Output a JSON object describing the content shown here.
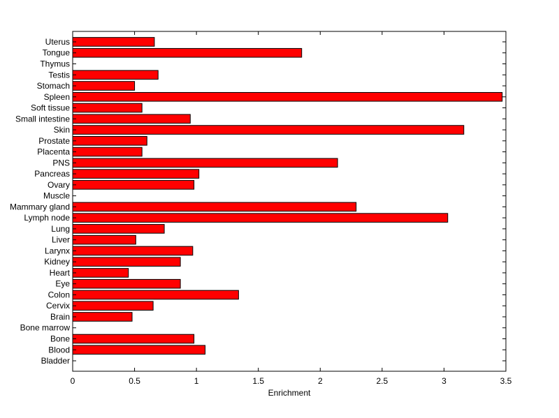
{
  "chart_data": {
    "type": "bar",
    "orientation": "horizontal",
    "title": "",
    "xlabel": "Enrichment",
    "ylabel": "",
    "xlim": [
      0,
      3.5
    ],
    "x_ticks": [
      0,
      0.5,
      1,
      1.5,
      2,
      2.5,
      3,
      3.5
    ],
    "x_tick_labels": [
      "0",
      "0.5",
      "1",
      "1.5",
      "2",
      "2.5",
      "3",
      "3.5"
    ],
    "grid": false,
    "bar_color": "#ff0000",
    "edge_color": "#000000",
    "categories": [
      "Bladder",
      "Blood",
      "Bone",
      "Bone marrow",
      "Brain",
      "Cervix",
      "Colon",
      "Eye",
      "Heart",
      "Kidney",
      "Larynx",
      "Liver",
      "Lung",
      "Lymph node",
      "Mammary gland",
      "Muscle",
      "Ovary",
      "Pancreas",
      "PNS",
      "Placenta",
      "Prostate",
      "Skin",
      "Small intestine",
      "Soft tissue",
      "Spleen",
      "Stomach",
      "Testis",
      "Thymus",
      "Tongue",
      "Uterus"
    ],
    "values": [
      0,
      1.07,
      0.98,
      0,
      0.48,
      0.65,
      1.34,
      0.87,
      0.45,
      0.87,
      0.97,
      0.51,
      0.74,
      3.03,
      2.29,
      0,
      0.98,
      1.02,
      2.14,
      0.56,
      0.6,
      3.16,
      0.95,
      0.56,
      3.47,
      0.5,
      0.69,
      0,
      1.85,
      0.66
    ]
  }
}
